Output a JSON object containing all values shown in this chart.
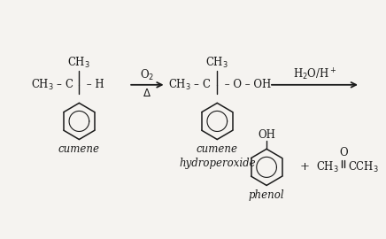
{
  "bg_color": "#f5f3f0",
  "text_color": "#1a1a1a",
  "fs_main": 8.5,
  "fs_small": 7.5,
  "cumene_label": "cumene",
  "cumene_hp_label": "cumene\nhydroperoxide",
  "phenol_label": "phenol",
  "arrow1_top": "O$_2$",
  "arrow1_bot": "$\\Delta$",
  "arrow2_label": "H$_2$O/H$^+$"
}
